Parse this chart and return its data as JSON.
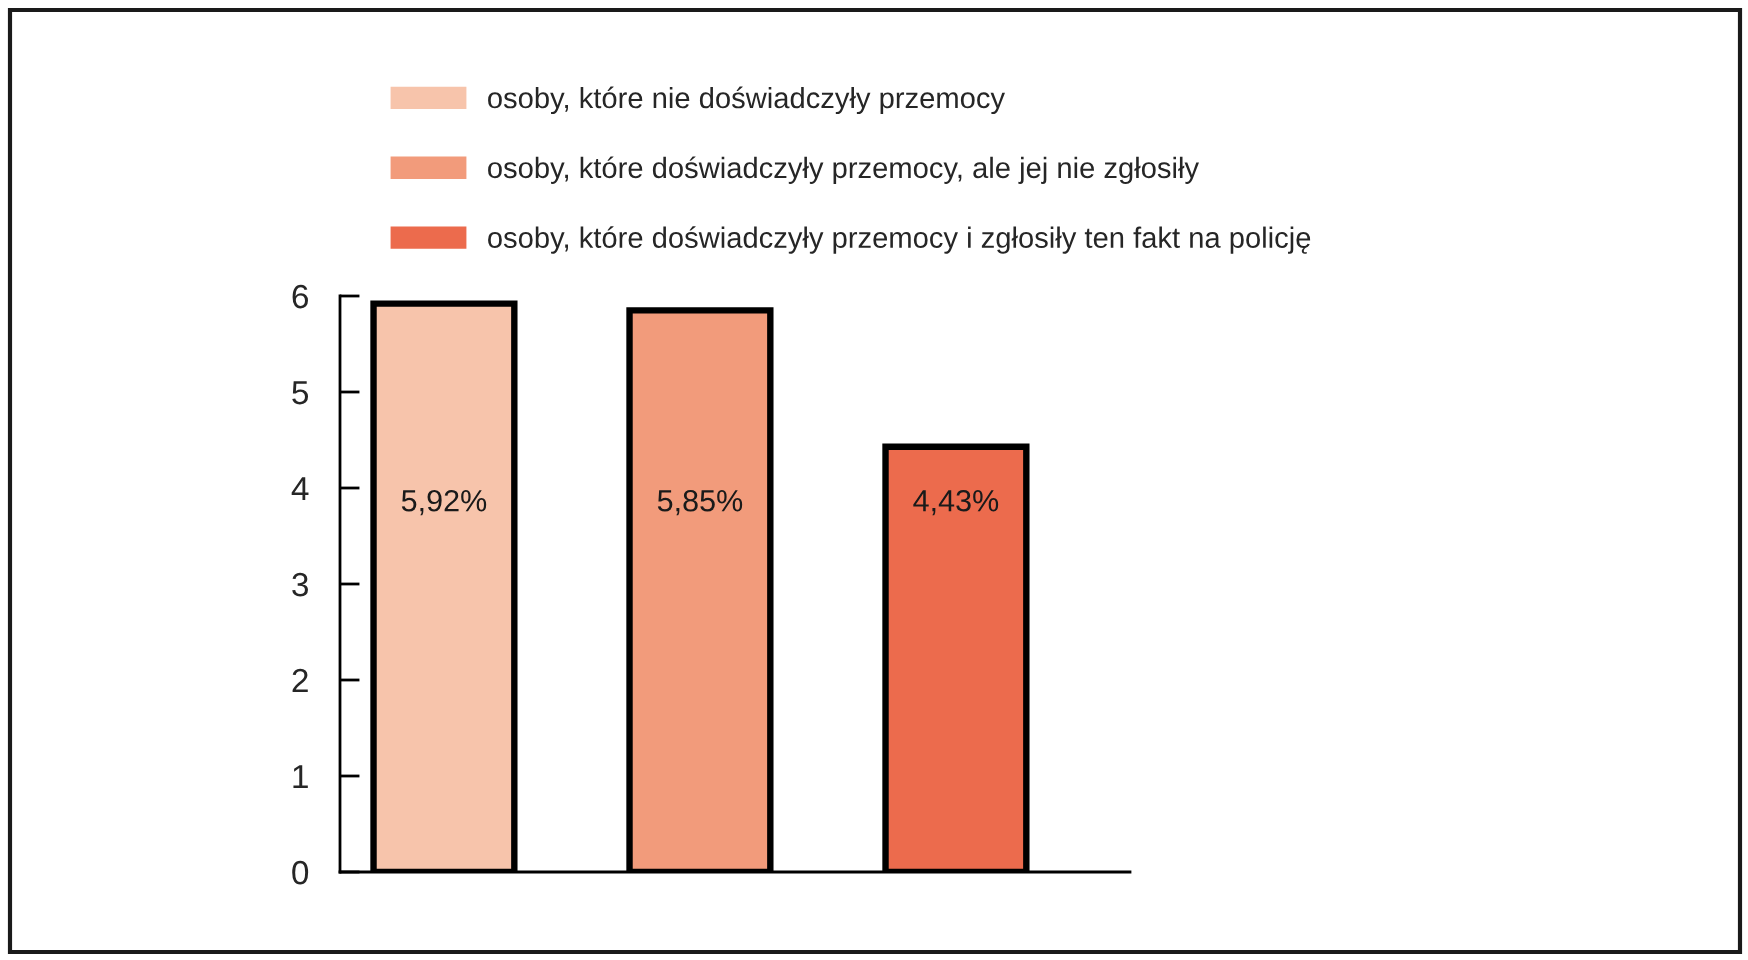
{
  "chart_data": {
    "type": "bar",
    "categories": [
      null,
      null,
      null
    ],
    "series": [
      {
        "name": "osoby, które nie doświadczyły przemocy",
        "color": "#f7c4ab",
        "values": [
          5.92,
          null,
          null
        ],
        "value_labels": [
          "5,92%",
          null,
          null
        ]
      },
      {
        "name": "osoby, które doświadczyły przemocy, ale jej nie zgłosiły",
        "color": "#f29b7b",
        "values": [
          null,
          5.85,
          null
        ],
        "value_labels": [
          null,
          "5,85%",
          null
        ]
      },
      {
        "name": "osoby, które doświadczyły przemocy i zgłosiły ten fakt na policję",
        "color": "#ec6b4d",
        "values": [
          null,
          null,
          4.43
        ],
        "value_labels": [
          null,
          null,
          "4,43%"
        ]
      }
    ],
    "ylim": [
      0,
      6
    ],
    "yticks": [
      0,
      1,
      2,
      3,
      4,
      5,
      6
    ],
    "grid": false,
    "legend": "top",
    "tick_labels": "y"
  }
}
